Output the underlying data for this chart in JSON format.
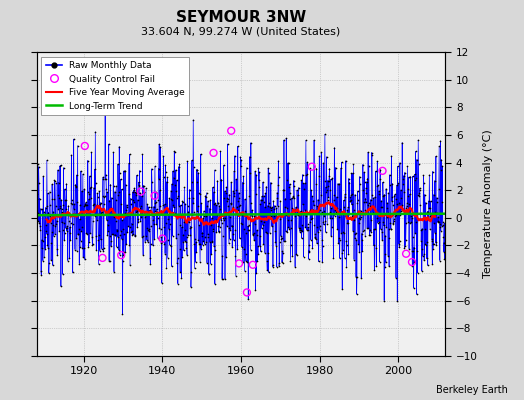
{
  "title": "SEYMOUR 3NW",
  "subtitle": "33.604 N, 99.274 W (United States)",
  "ylabel": "Temperature Anomaly (°C)",
  "credit": "Berkeley Earth",
  "xlim": [
    1908,
    2012
  ],
  "ylim": [
    -10,
    12
  ],
  "yticks": [
    -10,
    -8,
    -6,
    -4,
    -2,
    0,
    2,
    4,
    6,
    8,
    10,
    12
  ],
  "xticks": [
    1920,
    1940,
    1960,
    1980,
    2000
  ],
  "bg_color": "#d8d8d8",
  "plot_bg_color": "#f0f0f0",
  "raw_line_color": "#0000ff",
  "raw_dot_color": "#000000",
  "qc_fail_color": "#ff00ff",
  "moving_avg_color": "#ff0000",
  "trend_color": "#00bb00",
  "seed": 42,
  "n_years_start": 1908,
  "n_years_end": 2011,
  "moving_avg_window": 60,
  "qc_fail_points": [
    [
      1920.25,
      5.2
    ],
    [
      1924.75,
      -2.9
    ],
    [
      1929.5,
      -2.7
    ],
    [
      1934.5,
      1.9
    ],
    [
      1938.0,
      1.6
    ],
    [
      1940.0,
      -1.5
    ],
    [
      1953.0,
      4.7
    ],
    [
      1957.5,
      6.3
    ],
    [
      1959.5,
      -3.3
    ],
    [
      1961.5,
      -5.4
    ],
    [
      1963.0,
      -3.4
    ],
    [
      1978.0,
      3.7
    ],
    [
      1996.0,
      3.4
    ],
    [
      2002.0,
      -2.6
    ],
    [
      2003.5,
      -3.2
    ]
  ]
}
